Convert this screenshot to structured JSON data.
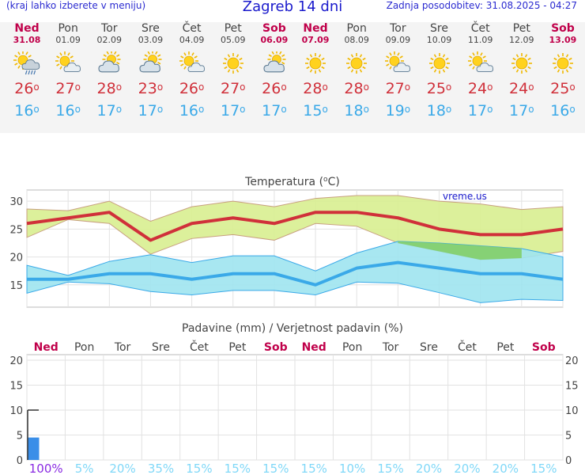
{
  "header": {
    "menu_hint": "(kraj lahko izberete v meniju)",
    "title": "Zagreb 14 dni",
    "updated": "Zadnja posodobitev: 31.08.2025 - 04:27"
  },
  "days": [
    {
      "name": "Ned",
      "date": "31.08",
      "weekend": true,
      "icon": "sun-cloud-rain",
      "max": "26",
      "min": "16"
    },
    {
      "name": "Pon",
      "date": "01.09",
      "weekend": false,
      "icon": "sun-cloud",
      "max": "27",
      "min": "16"
    },
    {
      "name": "Tor",
      "date": "02.09",
      "weekend": false,
      "icon": "cloud-sun",
      "max": "28",
      "min": "17"
    },
    {
      "name": "Sre",
      "date": "03.09",
      "weekend": false,
      "icon": "cloud-sun",
      "max": "23",
      "min": "17"
    },
    {
      "name": "Čet",
      "date": "04.09",
      "weekend": false,
      "icon": "sun-cloud",
      "max": "26",
      "min": "16"
    },
    {
      "name": "Pet",
      "date": "05.09",
      "weekend": false,
      "icon": "sun",
      "max": "27",
      "min": "17"
    },
    {
      "name": "Sob",
      "date": "06.09",
      "weekend": true,
      "icon": "cloud-sun",
      "max": "26",
      "min": "17"
    },
    {
      "name": "Ned",
      "date": "07.09",
      "weekend": true,
      "icon": "sun",
      "max": "28",
      "min": "15"
    },
    {
      "name": "Pon",
      "date": "08.09",
      "weekend": false,
      "icon": "sun",
      "max": "28",
      "min": "18"
    },
    {
      "name": "Tor",
      "date": "09.09",
      "weekend": false,
      "icon": "sun-cloud",
      "max": "27",
      "min": "19"
    },
    {
      "name": "Sre",
      "date": "10.09",
      "weekend": false,
      "icon": "sun",
      "max": "25",
      "min": "18"
    },
    {
      "name": "Čet",
      "date": "11.09",
      "weekend": false,
      "icon": "sun-cloud",
      "max": "24",
      "min": "17"
    },
    {
      "name": "Pet",
      "date": "12.09",
      "weekend": false,
      "icon": "sun",
      "max": "24",
      "min": "17"
    },
    {
      "name": "Sob",
      "date": "13.09",
      "weekend": true,
      "icon": "sun",
      "max": "25",
      "min": "16"
    }
  ],
  "degree_symbol": "o",
  "colors": {
    "max": "#d0303a",
    "min": "#3aa9e8",
    "weekend": "#c0004a",
    "max_band": "#d8ee90",
    "min_band": "#9ee4ef",
    "green_band": "#80cc60",
    "precip_bar": "#3a8ee8",
    "prob_text": "#80d8f8",
    "prob_first": "#8a2be2"
  },
  "chart_data": [
    {
      "type": "line",
      "title": "Temperatura (°C)",
      "title_prefix": "Temperatura (",
      "title_deg": "o",
      "title_suffix": "C)",
      "watermark": "vreme.us",
      "ylim": [
        11,
        32
      ],
      "yticks": [
        15,
        20,
        25,
        30
      ],
      "series": [
        {
          "key": "max",
          "values": [
            26,
            27,
            28,
            23,
            26,
            27,
            26,
            28,
            28,
            27,
            25,
            24,
            24,
            25
          ]
        },
        {
          "key": "max_high",
          "values": [
            28.6,
            28.3,
            30,
            26.4,
            29,
            30,
            29,
            30.5,
            31,
            31,
            30,
            29.5,
            28.5,
            29
          ]
        },
        {
          "key": "max_low",
          "values": [
            23.5,
            26.7,
            26,
            20.5,
            23.3,
            24,
            23,
            26,
            25.5,
            22.5,
            21,
            19.5,
            19.8,
            21
          ]
        },
        {
          "key": "min",
          "values": [
            16,
            16,
            17,
            17,
            16,
            17,
            17,
            15,
            18,
            19,
            18,
            17,
            17,
            16
          ]
        },
        {
          "key": "min_high",
          "values": [
            18.5,
            16.7,
            19.2,
            20.4,
            19,
            20.2,
            20.2,
            17.5,
            20.7,
            22.8,
            22.5,
            22,
            21.5,
            20
          ]
        },
        {
          "key": "min_low",
          "values": [
            13.5,
            15.5,
            15.2,
            13.8,
            13.2,
            14,
            14,
            13.2,
            15.5,
            15.3,
            13.6,
            11.8,
            12.4,
            12.2
          ]
        }
      ]
    },
    {
      "type": "bar",
      "title": "Padavine (mm) / Verjetnost padavin (%)",
      "categories": [
        "Ned",
        "Pon",
        "Tor",
        "Sre",
        "Čet",
        "Pet",
        "Sob",
        "Ned",
        "Pon",
        "Tor",
        "Sre",
        "Čet",
        "Pet",
        "Sob"
      ],
      "weekend": [
        true,
        false,
        false,
        false,
        false,
        false,
        true,
        true,
        false,
        false,
        false,
        false,
        false,
        true
      ],
      "ylim": [
        0,
        20
      ],
      "yticks": [
        0,
        5,
        10,
        15,
        20
      ],
      "precip_mm": [
        4.5,
        0,
        0,
        0,
        0,
        0,
        0,
        0,
        0,
        0,
        0,
        0,
        0,
        0
      ],
      "precip_max_mm": [
        10,
        0,
        0,
        0,
        0,
        0,
        0,
        0,
        0,
        0,
        0,
        0,
        0,
        0
      ],
      "probability": [
        "100%",
        "5%",
        "20%",
        "35%",
        "15%",
        "15%",
        "15%",
        "15%",
        "10%",
        "15%",
        "20%",
        "20%",
        "20%",
        "15%"
      ],
      "probability_values": [
        100,
        5,
        20,
        35,
        15,
        15,
        15,
        15,
        10,
        15,
        20,
        20,
        20,
        15
      ]
    }
  ]
}
